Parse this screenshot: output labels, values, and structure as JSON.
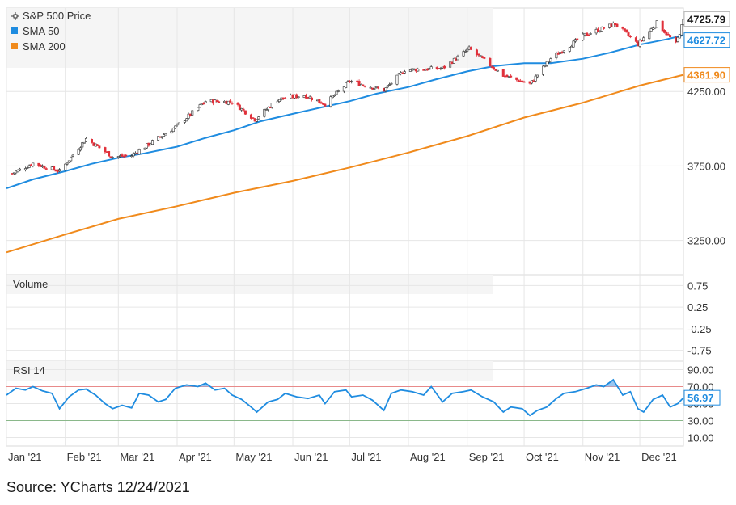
{
  "colors": {
    "up": "#ffffff",
    "up_border": "#333333",
    "down": "#e0303a",
    "sma50": "#1f8ce0",
    "sma200": "#f08a1c",
    "rsi": "#1f8ce0",
    "grid": "#d8d8d8",
    "panel_bg": "#f5f5f5",
    "rsi_upper": "#e88a8a",
    "rsi_lower": "#8ab88a"
  },
  "source_text": "Source: YCharts 12/24/2021",
  "chart_data": [
    {
      "type": "candlestick",
      "panel": "price",
      "legend": [
        {
          "name": "S&P 500 Price",
          "marker": "crosshair-icon"
        },
        {
          "name": "SMA 50",
          "marker": "square"
        },
        {
          "name": "SMA 200",
          "marker": "square"
        }
      ],
      "legend_position": "top-left",
      "ylim": [
        3020,
        4810
      ],
      "yticks": [
        "4250.00",
        "3750.00",
        "3250.00"
      ],
      "ytick_values": [
        4250,
        3750,
        3250
      ],
      "x_range": [
        "2021-01-01",
        "2021-12-24"
      ],
      "xticks": [
        "Jan '21",
        "Feb '21",
        "Mar '21",
        "Apr '21",
        "May '21",
        "Jun '21",
        "Jul '21",
        "Aug '21",
        "Sep '21",
        "Oct '21",
        "Nov '21",
        "Dec '21"
      ],
      "xtick_dates": [
        "2021-01-01",
        "2021-02-01",
        "2021-03-01",
        "2021-04-01",
        "2021-05-01",
        "2021-06-01",
        "2021-07-01",
        "2021-08-01",
        "2021-09-01",
        "2021-10-01",
        "2021-11-01",
        "2021-12-01"
      ],
      "last_values": [
        {
          "series": "S&P 500 Price",
          "label": "4725.79"
        },
        {
          "series": "SMA 50",
          "label": "4627.72"
        },
        {
          "series": "SMA 200",
          "label": "4361.90"
        }
      ],
      "close_anchors": {
        "dates": [
          "2021-01-04",
          "2021-01-15",
          "2021-01-29",
          "2021-02-12",
          "2021-02-26",
          "2021-03-08",
          "2021-03-19",
          "2021-04-01",
          "2021-04-16",
          "2021-04-30",
          "2021-05-12",
          "2021-05-24",
          "2021-06-07",
          "2021-06-18",
          "2021-07-01",
          "2021-07-19",
          "2021-07-30",
          "2021-08-19",
          "2021-09-02",
          "2021-09-20",
          "2021-10-04",
          "2021-10-15",
          "2021-11-02",
          "2021-11-18",
          "2021-11-30",
          "2021-12-10",
          "2021-12-20",
          "2021-12-24"
        ],
        "values": [
          3700,
          3768,
          3714,
          3934,
          3811,
          3821,
          3913,
          4020,
          4185,
          4181,
          4063,
          4197,
          4226,
          4166,
          4320,
          4258,
          4395,
          4405,
          4537,
          4358,
          4300,
          4471,
          4630,
          4704,
          4567,
          4712,
          4568,
          4725.79
        ]
      },
      "sma50": {
        "dates": [
          "2021-01-01",
          "2021-01-15",
          "2021-02-01",
          "2021-02-15",
          "2021-03-01",
          "2021-03-15",
          "2021-04-01",
          "2021-04-15",
          "2021-05-01",
          "2021-05-15",
          "2021-06-01",
          "2021-06-15",
          "2021-07-01",
          "2021-07-15",
          "2021-08-01",
          "2021-08-15",
          "2021-09-01",
          "2021-09-15",
          "2021-10-01",
          "2021-10-15",
          "2021-11-01",
          "2021-11-15",
          "2021-12-01",
          "2021-12-15",
          "2021-12-24"
        ],
        "values": [
          3600,
          3660,
          3715,
          3765,
          3805,
          3835,
          3880,
          3935,
          3990,
          4050,
          4100,
          4140,
          4185,
          4235,
          4280,
          4330,
          4385,
          4420,
          4440,
          4440,
          4470,
          4510,
          4565,
          4600,
          4627.72
        ]
      },
      "sma200": {
        "dates": [
          "2021-01-01",
          "2021-02-01",
          "2021-03-01",
          "2021-04-01",
          "2021-05-01",
          "2021-06-01",
          "2021-07-01",
          "2021-08-01",
          "2021-09-01",
          "2021-10-01",
          "2021-11-01",
          "2021-12-01",
          "2021-12-24"
        ],
        "values": [
          3170,
          3290,
          3395,
          3480,
          3570,
          3650,
          3740,
          3840,
          3950,
          4075,
          4175,
          4290,
          4361.9
        ]
      }
    },
    {
      "type": "bar",
      "panel": "volume",
      "title": "Volume",
      "ylim": [
        -1,
        1
      ],
      "yticks": [
        "0.75",
        "0.25",
        "-0.25",
        "-0.75"
      ],
      "ytick_values": [
        0.75,
        0.25,
        -0.25,
        -0.75
      ]
    },
    {
      "type": "line",
      "panel": "rsi",
      "title": "RSI 14",
      "ylim": [
        0,
        100
      ],
      "yticks": [
        "90.00",
        "70.00",
        "50.00",
        "30.00",
        "10.00"
      ],
      "ytick_values": [
        90,
        70,
        50,
        30,
        10
      ],
      "bands": [
        70,
        30
      ],
      "last_value": "56.97",
      "series": {
        "dates": [
          "2021-01-01",
          "2021-01-06",
          "2021-01-11",
          "2021-01-15",
          "2021-01-20",
          "2021-01-25",
          "2021-01-29",
          "2021-02-03",
          "2021-02-08",
          "2021-02-12",
          "2021-02-17",
          "2021-02-22",
          "2021-02-26",
          "2021-03-03",
          "2021-03-08",
          "2021-03-12",
          "2021-03-17",
          "2021-03-22",
          "2021-03-26",
          "2021-03-31",
          "2021-04-06",
          "2021-04-12",
          "2021-04-16",
          "2021-04-21",
          "2021-04-26",
          "2021-04-30",
          "2021-05-05",
          "2021-05-10",
          "2021-05-13",
          "2021-05-19",
          "2021-05-24",
          "2021-05-28",
          "2021-06-03",
          "2021-06-09",
          "2021-06-15",
          "2021-06-18",
          "2021-06-23",
          "2021-06-29",
          "2021-07-02",
          "2021-07-08",
          "2021-07-13",
          "2021-07-19",
          "2021-07-23",
          "2021-07-28",
          "2021-08-03",
          "2021-08-09",
          "2021-08-13",
          "2021-08-19",
          "2021-08-24",
          "2021-08-30",
          "2021-09-03",
          "2021-09-09",
          "2021-09-15",
          "2021-09-20",
          "2021-09-24",
          "2021-09-30",
          "2021-10-04",
          "2021-10-08",
          "2021-10-13",
          "2021-10-18",
          "2021-10-22",
          "2021-10-28",
          "2021-11-03",
          "2021-11-08",
          "2021-11-12",
          "2021-11-17",
          "2021-11-22",
          "2021-11-26",
          "2021-11-30",
          "2021-12-03",
          "2021-12-08",
          "2021-12-13",
          "2021-12-17",
          "2021-12-21",
          "2021-12-24"
        ],
        "values": [
          60,
          68,
          66,
          70,
          65,
          62,
          44,
          58,
          66,
          67,
          60,
          50,
          44,
          48,
          45,
          62,
          60,
          52,
          55,
          68,
          72,
          70,
          74,
          66,
          68,
          60,
          55,
          46,
          40,
          52,
          55,
          62,
          58,
          56,
          60,
          50,
          64,
          66,
          58,
          60,
          54,
          42,
          62,
          66,
          64,
          60,
          70,
          52,
          62,
          64,
          66,
          58,
          52,
          40,
          46,
          44,
          36,
          42,
          46,
          56,
          62,
          64,
          68,
          72,
          70,
          78,
          60,
          64,
          44,
          40,
          55,
          60,
          46,
          50,
          56.97
        ]
      }
    }
  ]
}
